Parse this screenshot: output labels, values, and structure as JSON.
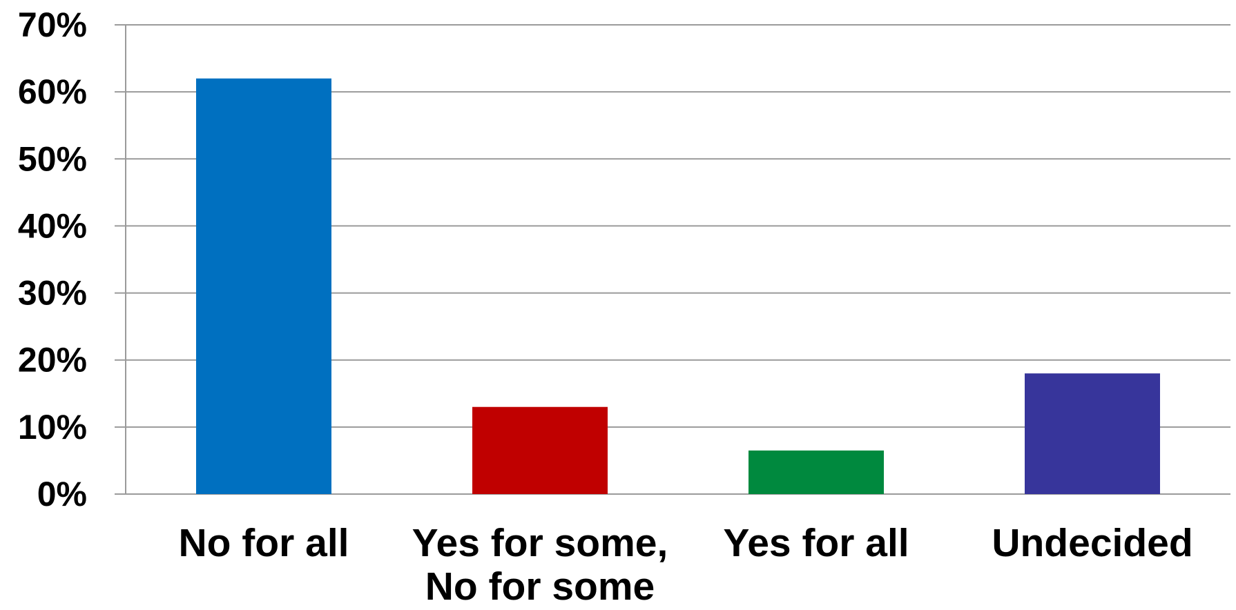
{
  "chart_data": {
    "type": "bar",
    "categories": [
      [
        "No for all"
      ],
      [
        "Yes for some,",
        "No for some"
      ],
      [
        "Yes for all"
      ],
      [
        "Undecided"
      ]
    ],
    "values": [
      62,
      13,
      6.5,
      18
    ],
    "colors": [
      "#0070C0",
      "#C00000",
      "#00893E",
      "#37359B"
    ],
    "ylim": [
      0,
      70
    ],
    "yticks": [
      0,
      10,
      20,
      30,
      40,
      50,
      60,
      70
    ],
    "ytick_labels": [
      "0%",
      "10%",
      "20%",
      "30%",
      "40%",
      "50%",
      "60%",
      "70%"
    ],
    "grid": true,
    "gridline_color": "#9A9A9A"
  }
}
